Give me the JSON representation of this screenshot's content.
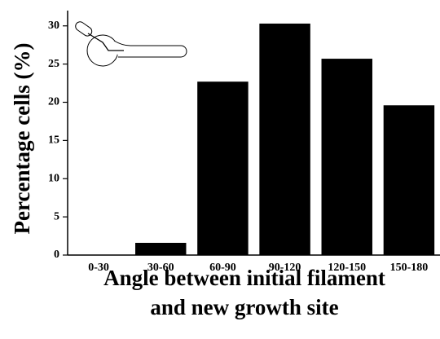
{
  "chart_data": {
    "type": "bar",
    "xlabel": "Angle between initial filament and new growth site",
    "ylabel": "Percentage cells (%)",
    "categories": [
      "0-30",
      "30-60",
      "60-90",
      "90-120",
      "120-150",
      "150-180"
    ],
    "values": [
      0,
      1.6,
      22.7,
      30.3,
      25.7,
      19.6
    ],
    "color": "#000000",
    "ylim": [
      0,
      32
    ],
    "yticks": [
      0,
      5,
      10,
      15,
      20,
      25,
      30
    ],
    "grid": false
  }
}
